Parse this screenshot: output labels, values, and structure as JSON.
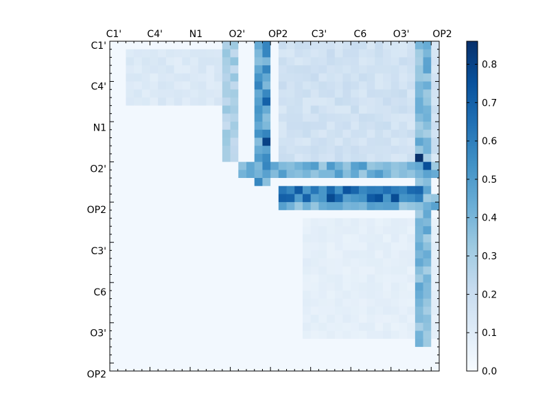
{
  "chart_data": {
    "type": "heatmap",
    "title": "",
    "xlabel": "",
    "ylabel": "",
    "x_tick_labels": [
      "C1'",
      "C4'",
      "N1",
      "O2'",
      "OP2",
      "C3'",
      "C6",
      "O3'",
      "OP2"
    ],
    "y_tick_labels": [
      "C1'",
      "C4'",
      "N1",
      "O2'",
      "OP2",
      "C3'",
      "C6",
      "O3'",
      "OP2"
    ],
    "x_ticks_position": "top",
    "grid_size": 41,
    "colormap": "Blues",
    "colorbar": {
      "range": [
        0.0,
        0.86
      ],
      "ticks": [
        "0.0",
        "0.1",
        "0.2",
        "0.3",
        "0.4",
        "0.5",
        "0.6",
        "0.7",
        "0.8"
      ],
      "position": "right"
    },
    "background_value": 0.02,
    "bands": [
      {
        "region": "upper-left block",
        "rows": [
          1,
          7
        ],
        "cols": [
          2,
          14
        ],
        "value": 0.12
      },
      {
        "region": "upper-right block",
        "rows": [
          0,
          14
        ],
        "cols": [
          21,
          40
        ],
        "value": 0.17
      },
      {
        "region": "column OP2 band",
        "rows": [
          0,
          17
        ],
        "cols": [
          18,
          19
        ],
        "value": 0.48
      },
      {
        "region": "column O2' side",
        "rows": [
          0,
          14
        ],
        "cols": [
          14,
          15
        ],
        "value": 0.28
      },
      {
        "region": "row O2' band",
        "rows": [
          15,
          16
        ],
        "cols": [
          16,
          40
        ],
        "value": 0.42
      },
      {
        "region": "row OP2 strong band",
        "rows": [
          18,
          19
        ],
        "cols": [
          21,
          38
        ],
        "value": 0.62
      },
      {
        "region": "row OP2 second band",
        "rows": [
          19,
          20
        ],
        "cols": [
          21,
          40
        ],
        "value": 0.4
      },
      {
        "region": "right edge column",
        "rows": [
          0,
          37
        ],
        "cols": [
          38,
          39
        ],
        "value": 0.38
      },
      {
        "region": "lower scatter",
        "rows": [
          22,
          36
        ],
        "cols": [
          24,
          40
        ],
        "value": 0.08
      }
    ],
    "peaks": [
      {
        "row": 14,
        "col": 38,
        "value": 0.86
      },
      {
        "row": 12,
        "col": 19,
        "value": 0.8
      },
      {
        "row": 15,
        "col": 39,
        "value": 0.76
      },
      {
        "row": 7,
        "col": 19,
        "value": 0.7
      },
      {
        "row": 18,
        "col": 23,
        "value": 0.72
      }
    ]
  }
}
